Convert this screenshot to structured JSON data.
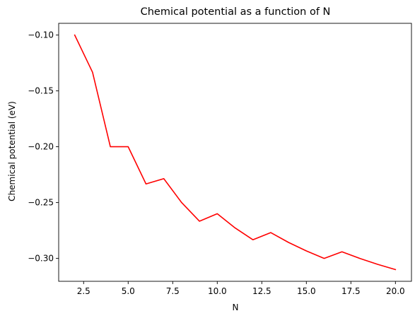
{
  "chart_data": {
    "type": "line",
    "title": "Chemical potential as a function of N",
    "xlabel": "N",
    "ylabel": "Chemical potential (eV)",
    "xlim": [
      1.1,
      20.9
    ],
    "ylim": [
      -0.3205,
      -0.0895
    ],
    "x_ticks": [
      2.5,
      5.0,
      7.5,
      10.0,
      12.5,
      15.0,
      17.5,
      20.0
    ],
    "x_tick_labels": [
      "2.5",
      "5.0",
      "7.5",
      "10.0",
      "12.5",
      "15.0",
      "17.5",
      "20.0"
    ],
    "y_ticks": [
      -0.1,
      -0.15,
      -0.2,
      -0.25,
      -0.3
    ],
    "y_tick_labels": [
      "−0.10",
      "−0.15",
      "−0.20",
      "−0.25",
      "−0.30"
    ],
    "grid": false,
    "series": [
      {
        "color": "#ff0000",
        "x": [
          2,
          3,
          4,
          5,
          6,
          7,
          8,
          9,
          10,
          11,
          12,
          13,
          14,
          15,
          16,
          17,
          18,
          19,
          20
        ],
        "values": [
          -0.1,
          -0.1333,
          -0.2,
          -0.2,
          -0.2333,
          -0.2286,
          -0.25,
          -0.2667,
          -0.26,
          -0.2727,
          -0.2833,
          -0.2769,
          -0.2857,
          -0.2933,
          -0.3,
          -0.2941,
          -0.3,
          -0.3053,
          -0.31
        ]
      }
    ]
  }
}
